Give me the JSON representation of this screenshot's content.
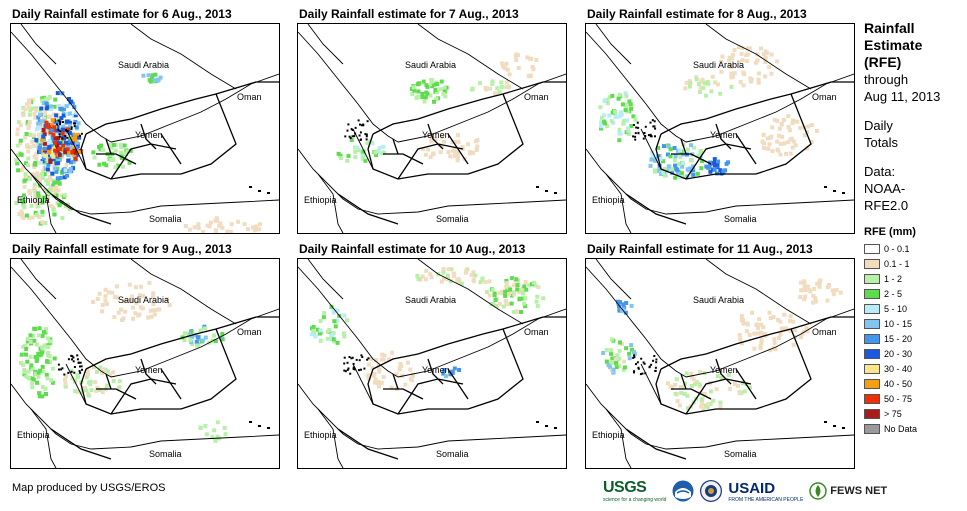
{
  "panels": [
    {
      "title": "Daily Rainfall estimate for 6 Aug., 2013",
      "regime": "heavy"
    },
    {
      "title": "Daily Rainfall estimate for 7 Aug., 2013",
      "regime": "light"
    },
    {
      "title": "Daily Rainfall estimate for 8 Aug., 2013",
      "regime": "moderate"
    },
    {
      "title": "Daily Rainfall estimate for 9 Aug., 2013",
      "regime": "moderate-west"
    },
    {
      "title": "Daily Rainfall estimate for 10 Aug., 2013",
      "regime": "light-north"
    },
    {
      "title": "Daily Rainfall estimate for 11 Aug., 2013",
      "regime": "light-scattered"
    }
  ],
  "map_labels": {
    "saudi": "Saudi Arabia",
    "oman": "Oman",
    "yemen": "Yemen",
    "ethiopia": "Ethiopia",
    "somalia": "Somalia"
  },
  "legend": {
    "title_lines": [
      "Rainfall",
      "Estimate",
      "(RFE)"
    ],
    "through_lines": [
      "through",
      "Aug 11, 2013"
    ],
    "daily_lines": [
      "Daily",
      "Totals"
    ],
    "data_lines": [
      "Data:",
      "NOAA-",
      "RFE2.0"
    ],
    "rfe_header": "RFE (mm)",
    "classes": [
      {
        "label": "0 - 0.1",
        "color": "#ffffff"
      },
      {
        "label": "0.1 - 1",
        "color": "#f1dcc0"
      },
      {
        "label": "1 - 2",
        "color": "#b8f0a8"
      },
      {
        "label": "2 - 5",
        "color": "#5edc4e"
      },
      {
        "label": "5 - 10",
        "color": "#b8ecf8"
      },
      {
        "label": "10 - 15",
        "color": "#84c4f0"
      },
      {
        "label": "15 - 20",
        "color": "#4496ec"
      },
      {
        "label": "20 - 30",
        "color": "#1a5ae0"
      },
      {
        "label": "30 - 40",
        "color": "#fae48c"
      },
      {
        "label": "40 - 50",
        "color": "#f4a014"
      },
      {
        "label": "50 - 75",
        "color": "#ee3008"
      },
      {
        "label": "> 75",
        "color": "#a81c1c"
      },
      {
        "label": "No Data",
        "color": "#9a9a9a"
      }
    ]
  },
  "credit": "Map produced by USGS/EROS",
  "logos": {
    "usgs": "USGS",
    "usgs_tag": "science for a changing world",
    "usaid": "USAID",
    "usaid_tag": "FROM THE AMERICAN PEOPLE",
    "fews": "FEWS NET"
  }
}
